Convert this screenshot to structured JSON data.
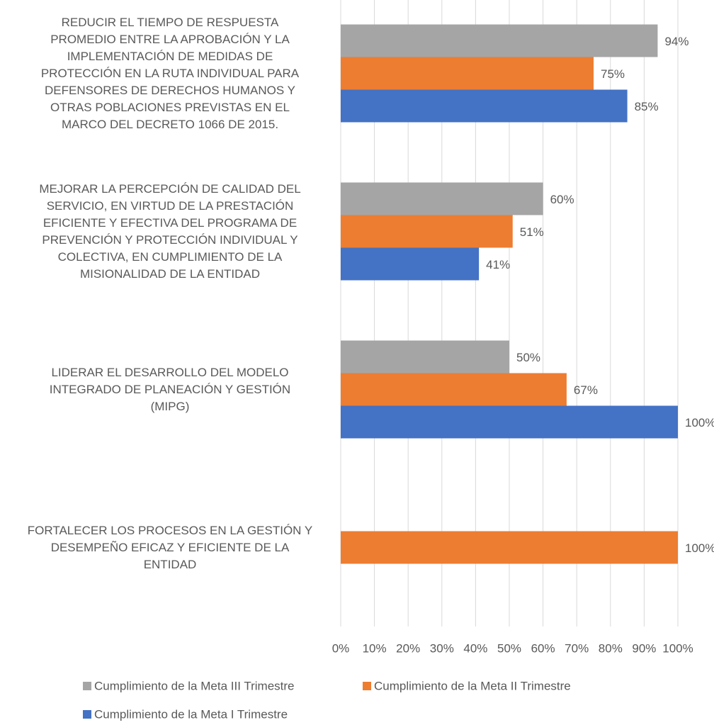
{
  "chart_data": {
    "type": "barh",
    "categories": [
      "REDUCIR EL TIEMPO DE RESPUESTA\nPROMEDIO ENTRE LA APROBACIÓN  Y LA\nIMPLEMENTACIÓN DE MEDIDAS DE\nPROTECCIÓN  EN LA RUTA INDIVIDUAL PARA\nDEFENSORES DE DERECHOS HUMANOS Y\nOTRAS POBLACIONES PREVISTAS EN EL\nMARCO DEL DECRETO 1066 DE 2015.",
      "MEJORAR LA PERCEPCIÓN DE CALIDAD DEL\nSERVICIO, EN VIRTUD DE LA PRESTACIÓN\nEFICIENTE Y EFECTIVA DEL PROGRAMA DE\nPREVENCIÓN Y PROTECCIÓN INDIVIDUAL Y\nCOLECTIVA, EN CUMPLIMIENTO DE LA\nMISIONALIDAD DE LA ENTIDAD",
      "LIDERAR EL DESARROLLO DEL  MODELO\nINTEGRADO DE PLANEACIÓN Y GESTIÓN\n(MIPG)",
      "FORTALECER LOS PROCESOS EN LA GESTIÓN Y\nDESEMPEÑO EFICAZ Y EFICIENTE DE LA\nENTIDAD"
    ],
    "series": [
      {
        "name": "Cumplimiento de la Meta III Trimestre",
        "color": "#a5a5a5",
        "values": [
          94,
          60,
          50,
          null
        ],
        "value_labels": [
          "94%",
          "60%",
          "50%",
          null
        ]
      },
      {
        "name": "Cumplimiento de la Meta II Trimestre",
        "color": "#ed7d31",
        "values": [
          75,
          51,
          67,
          100
        ],
        "value_labels": [
          "75%",
          "51%",
          "67%",
          "100%"
        ]
      },
      {
        "name": "Cumplimiento de la Meta I Trimestre",
        "color": "#4472c4",
        "values": [
          85,
          41,
          100,
          null
        ],
        "value_labels": [
          "85%",
          "41%",
          "100%",
          null
        ]
      }
    ],
    "xlim": [
      0,
      100
    ],
    "xticks": [
      {
        "value": 0,
        "label": "0%"
      },
      {
        "value": 10,
        "label": "10%"
      },
      {
        "value": 20,
        "label": "20%"
      },
      {
        "value": 30,
        "label": "30%"
      },
      {
        "value": 40,
        "label": "40%"
      },
      {
        "value": 50,
        "label": "50%"
      },
      {
        "value": 60,
        "label": "60%"
      },
      {
        "value": 70,
        "label": "70%"
      },
      {
        "value": 80,
        "label": "80%"
      },
      {
        "value": 90,
        "label": "90%"
      },
      {
        "value": 100,
        "label": "100%"
      }
    ],
    "grid": true,
    "legend": "bottom"
  }
}
